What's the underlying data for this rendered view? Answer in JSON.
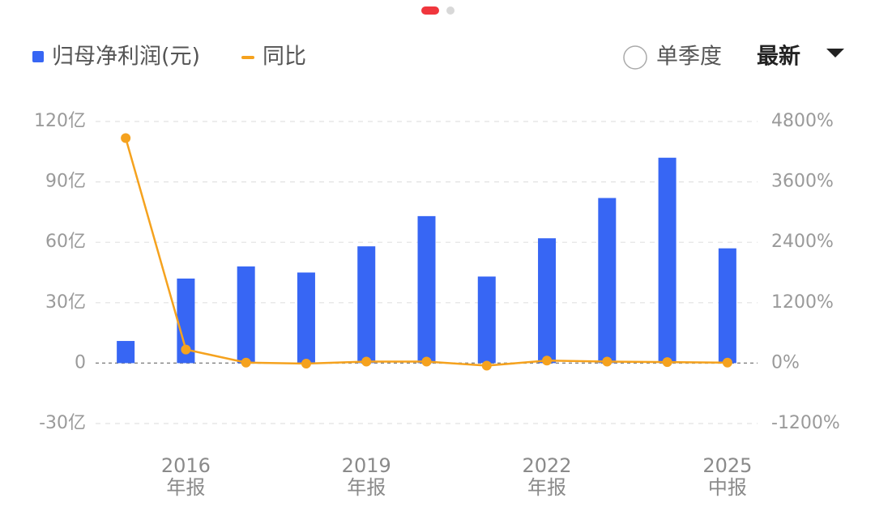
{
  "chart_data": {
    "type": "bar_line",
    "legend": {
      "bar": "归母净利润(元)",
      "line": "同比",
      "toggle": "单季度",
      "dropdown": "最新"
    },
    "categories": [
      null,
      "2016\n年报",
      null,
      null,
      "2019\n年报",
      null,
      null,
      "2022\n年报",
      null,
      null,
      "2025\n中报"
    ],
    "series": [
      {
        "name": "归母净利润(元)",
        "type": "bar",
        "color": "#3766f4",
        "values": [
          11,
          42,
          48,
          45,
          58,
          73,
          43,
          62,
          82,
          102,
          57
        ]
      },
      {
        "name": "同比",
        "type": "line",
        "axis": "y2",
        "color": "#f5a21e",
        "values": [
          4470,
          270,
          10,
          -10,
          30,
          30,
          -50,
          50,
          30,
          20,
          10
        ]
      }
    ],
    "ylim": [
      -30,
      120
    ],
    "yticks": [
      {
        "value": -30,
        "label": "-30亿"
      },
      0,
      {
        "value": 30,
        "label": "30亿"
      },
      {
        "value": 60,
        "label": "60亿"
      },
      {
        "value": 90,
        "label": "90亿"
      },
      {
        "value": 120,
        "label": "120亿"
      }
    ],
    "y2lim": [
      -1200,
      4800
    ],
    "y2ticks": [
      {
        "value": -1200,
        "label": "-1200%"
      },
      {
        "value": 0,
        "label": "0%"
      },
      {
        "value": 1200,
        "label": "1200%"
      },
      {
        "value": 2400,
        "label": "2400%"
      },
      {
        "value": 3600,
        "label": "3600%"
      },
      {
        "value": 4800,
        "label": "4800%"
      }
    ],
    "grid": true
  }
}
